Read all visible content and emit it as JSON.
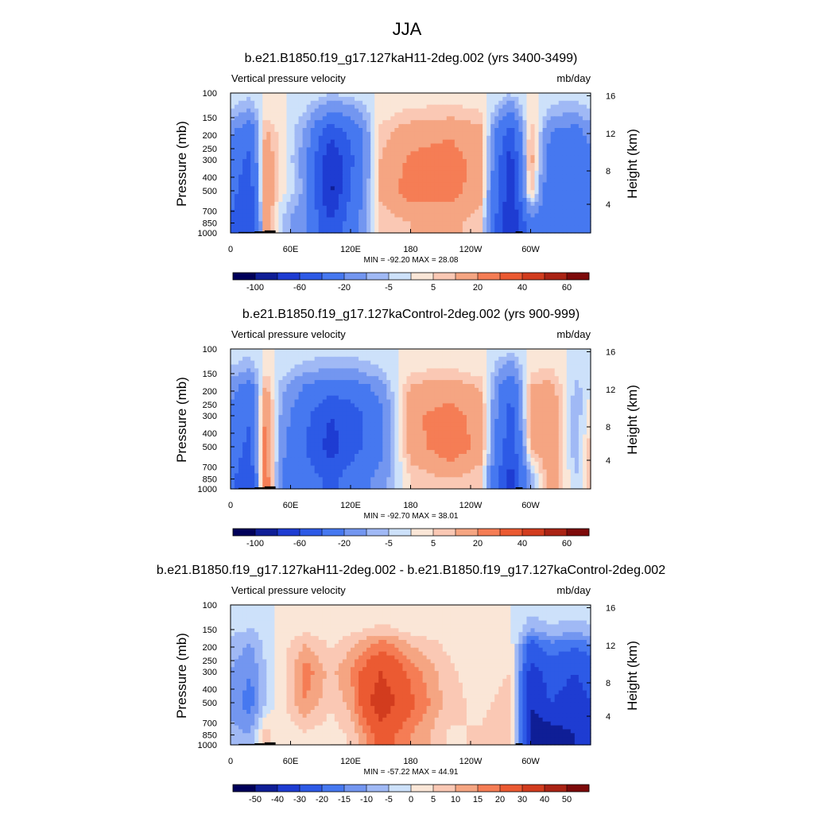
{
  "figure": {
    "title": "JJA"
  },
  "chart_data": [
    {
      "type": "heatmap",
      "title": "b.e21.B1850.f19_g17.127kaH11-2deg.002 (yrs 3400-3499)",
      "variable_label": "Vertical pressure velocity",
      "units_label": "mb/day",
      "ylabel": "Pressure (mb)",
      "y2label": "Height (km)",
      "x_ticks": [
        "0",
        "60E",
        "120E",
        "180",
        "120W",
        "60W"
      ],
      "y_ticks": [
        "100",
        "150",
        "200",
        "250",
        "300",
        "400",
        "500",
        "700",
        "850",
        "1000"
      ],
      "y2_ticks": [
        "16",
        "12",
        "8",
        "4"
      ],
      "minmax_label": "MIN = -92.20  MAX =  28.08",
      "min": -92.2,
      "max": 28.08,
      "colorbar_labels": [
        "-100",
        "-60",
        "-20",
        "-5",
        "5",
        "20",
        "40",
        "60"
      ],
      "colorbar_colors": [
        "#00005a",
        "#0f1e96",
        "#1e3cd2",
        "#2d5ae6",
        "#4678f0",
        "#7396f0",
        "#a0b9f5",
        "#cde1fa",
        "#fae6d7",
        "#fac8b4",
        "#f5a582",
        "#f57d55",
        "#eb5a32",
        "#d23c1e",
        "#aa2314",
        "#7d0a0a"
      ],
      "field": {
        "x_lon": [
          0,
          20,
          35,
          50,
          75,
          100,
          120,
          150,
          180,
          220,
          250,
          280,
          300,
          320,
          345,
          360
        ],
        "p_levels": [
          150,
          300,
          500,
          850
        ],
        "values": [
          [
            -10,
            -25,
            8,
            2,
            -10,
            -40,
            -30,
            5,
            12,
            15,
            10,
            -40,
            8,
            -15,
            -20,
            -10
          ],
          [
            -30,
            -45,
            18,
            4,
            -15,
            -80,
            -45,
            10,
            22,
            25,
            15,
            -70,
            15,
            -30,
            -35,
            -25
          ],
          [
            -35,
            -50,
            22,
            3,
            -12,
            -85,
            -40,
            12,
            26,
            25,
            14,
            -75,
            10,
            -35,
            -40,
            -30
          ],
          [
            -40,
            -60,
            15,
            -5,
            -20,
            -60,
            -30,
            5,
            10,
            12,
            6,
            -85,
            -25,
            -30,
            -35,
            -30
          ]
        ]
      }
    },
    {
      "type": "heatmap",
      "title": "b.e21.B1850.f19_g17.127kaControl-2deg.002 (yrs 900-999)",
      "variable_label": "Vertical pressure velocity",
      "units_label": "mb/day",
      "ylabel": "Pressure (mb)",
      "y2label": "Height (km)",
      "x_ticks": [
        "0",
        "60E",
        "120E",
        "180",
        "120W",
        "60W"
      ],
      "y_ticks": [
        "100",
        "150",
        "200",
        "250",
        "300",
        "400",
        "500",
        "700",
        "850",
        "1000"
      ],
      "y2_ticks": [
        "16",
        "12",
        "8",
        "4"
      ],
      "minmax_label": "MIN = -92.70  MAX =  38.01",
      "min": -92.7,
      "max": 38.01,
      "colorbar_labels": [
        "-100",
        "-60",
        "-20",
        "-5",
        "5",
        "20",
        "40",
        "60"
      ],
      "colorbar_colors": [
        "#00005a",
        "#0f1e96",
        "#1e3cd2",
        "#2d5ae6",
        "#4678f0",
        "#7396f0",
        "#a0b9f5",
        "#cde1fa",
        "#fae6d7",
        "#fac8b4",
        "#f5a582",
        "#f57d55",
        "#eb5a32",
        "#d23c1e",
        "#aa2314",
        "#7d0a0a"
      ],
      "field": {
        "x_lon": [
          0,
          20,
          35,
          50,
          75,
          100,
          120,
          150,
          180,
          220,
          250,
          280,
          300,
          320,
          345,
          360
        ],
        "p_levels": [
          150,
          300,
          500,
          850
        ],
        "values": [
          [
            -10,
            -20,
            8,
            -5,
            -15,
            -20,
            -20,
            -10,
            8,
            10,
            6,
            -30,
            8,
            10,
            -5,
            -5
          ],
          [
            -25,
            -40,
            22,
            -10,
            -35,
            -60,
            -50,
            -25,
            18,
            25,
            15,
            -50,
            15,
            20,
            -10,
            5
          ],
          [
            -30,
            -45,
            28,
            -15,
            -40,
            -70,
            -50,
            -25,
            15,
            28,
            16,
            -55,
            10,
            20,
            -10,
            8
          ],
          [
            -35,
            -55,
            30,
            -20,
            -30,
            -45,
            -30,
            -15,
            5,
            10,
            5,
            -70,
            -10,
            15,
            -5,
            10
          ]
        ]
      }
    },
    {
      "type": "heatmap",
      "title": "b.e21.B1850.f19_g17.127kaH11-2deg.002 - b.e21.B1850.f19_g17.127kaControl-2deg.002",
      "variable_label": "Vertical pressure velocity",
      "units_label": "mb/day",
      "ylabel": "Pressure (mb)",
      "y2label": "Height (km)",
      "x_ticks": [
        "0",
        "60E",
        "120E",
        "180",
        "120W",
        "60W"
      ],
      "y_ticks": [
        "100",
        "150",
        "200",
        "250",
        "300",
        "400",
        "500",
        "700",
        "850",
        "1000"
      ],
      "y2_ticks": [
        "16",
        "12",
        "8",
        "4"
      ],
      "minmax_label": "MIN = -57.22  MAX =  44.91",
      "min": -57.22,
      "max": 44.91,
      "colorbar_labels": [
        "-50",
        "-40",
        "-30",
        "-20",
        "-15",
        "-10",
        "-5",
        "0",
        "5",
        "10",
        "15",
        "20",
        "30",
        "40",
        "50"
      ],
      "colorbar_colors": [
        "#00005a",
        "#0f1e96",
        "#1e3cd2",
        "#2d5ae6",
        "#4678f0",
        "#7396f0",
        "#a0b9f5",
        "#cde1fa",
        "#fae6d7",
        "#fac8b4",
        "#f5a582",
        "#f57d55",
        "#eb5a32",
        "#d23c1e",
        "#aa2314",
        "#7d0a0a"
      ],
      "field": {
        "x_lon": [
          0,
          20,
          35,
          50,
          75,
          100,
          120,
          150,
          165,
          180,
          220,
          250,
          280,
          300,
          320,
          345,
          360
        ],
        "p_levels": [
          150,
          300,
          500,
          850
        ],
        "values": [
          [
            -5,
            -8,
            -3,
            2,
            6,
            2,
            5,
            10,
            8,
            5,
            2,
            1,
            1,
            -15,
            -10,
            -12,
            -10
          ],
          [
            -10,
            -15,
            -5,
            2,
            18,
            8,
            15,
            30,
            25,
            18,
            6,
            2,
            5,
            -35,
            -25,
            -30,
            -25
          ],
          [
            -12,
            -18,
            -6,
            3,
            15,
            6,
            12,
            38,
            30,
            22,
            7,
            3,
            8,
            -40,
            -30,
            -35,
            -30
          ],
          [
            -8,
            -10,
            8,
            1,
            4,
            2,
            6,
            25,
            20,
            15,
            4,
            6,
            10,
            -45,
            -45,
            -40,
            -35
          ]
        ]
      }
    }
  ]
}
